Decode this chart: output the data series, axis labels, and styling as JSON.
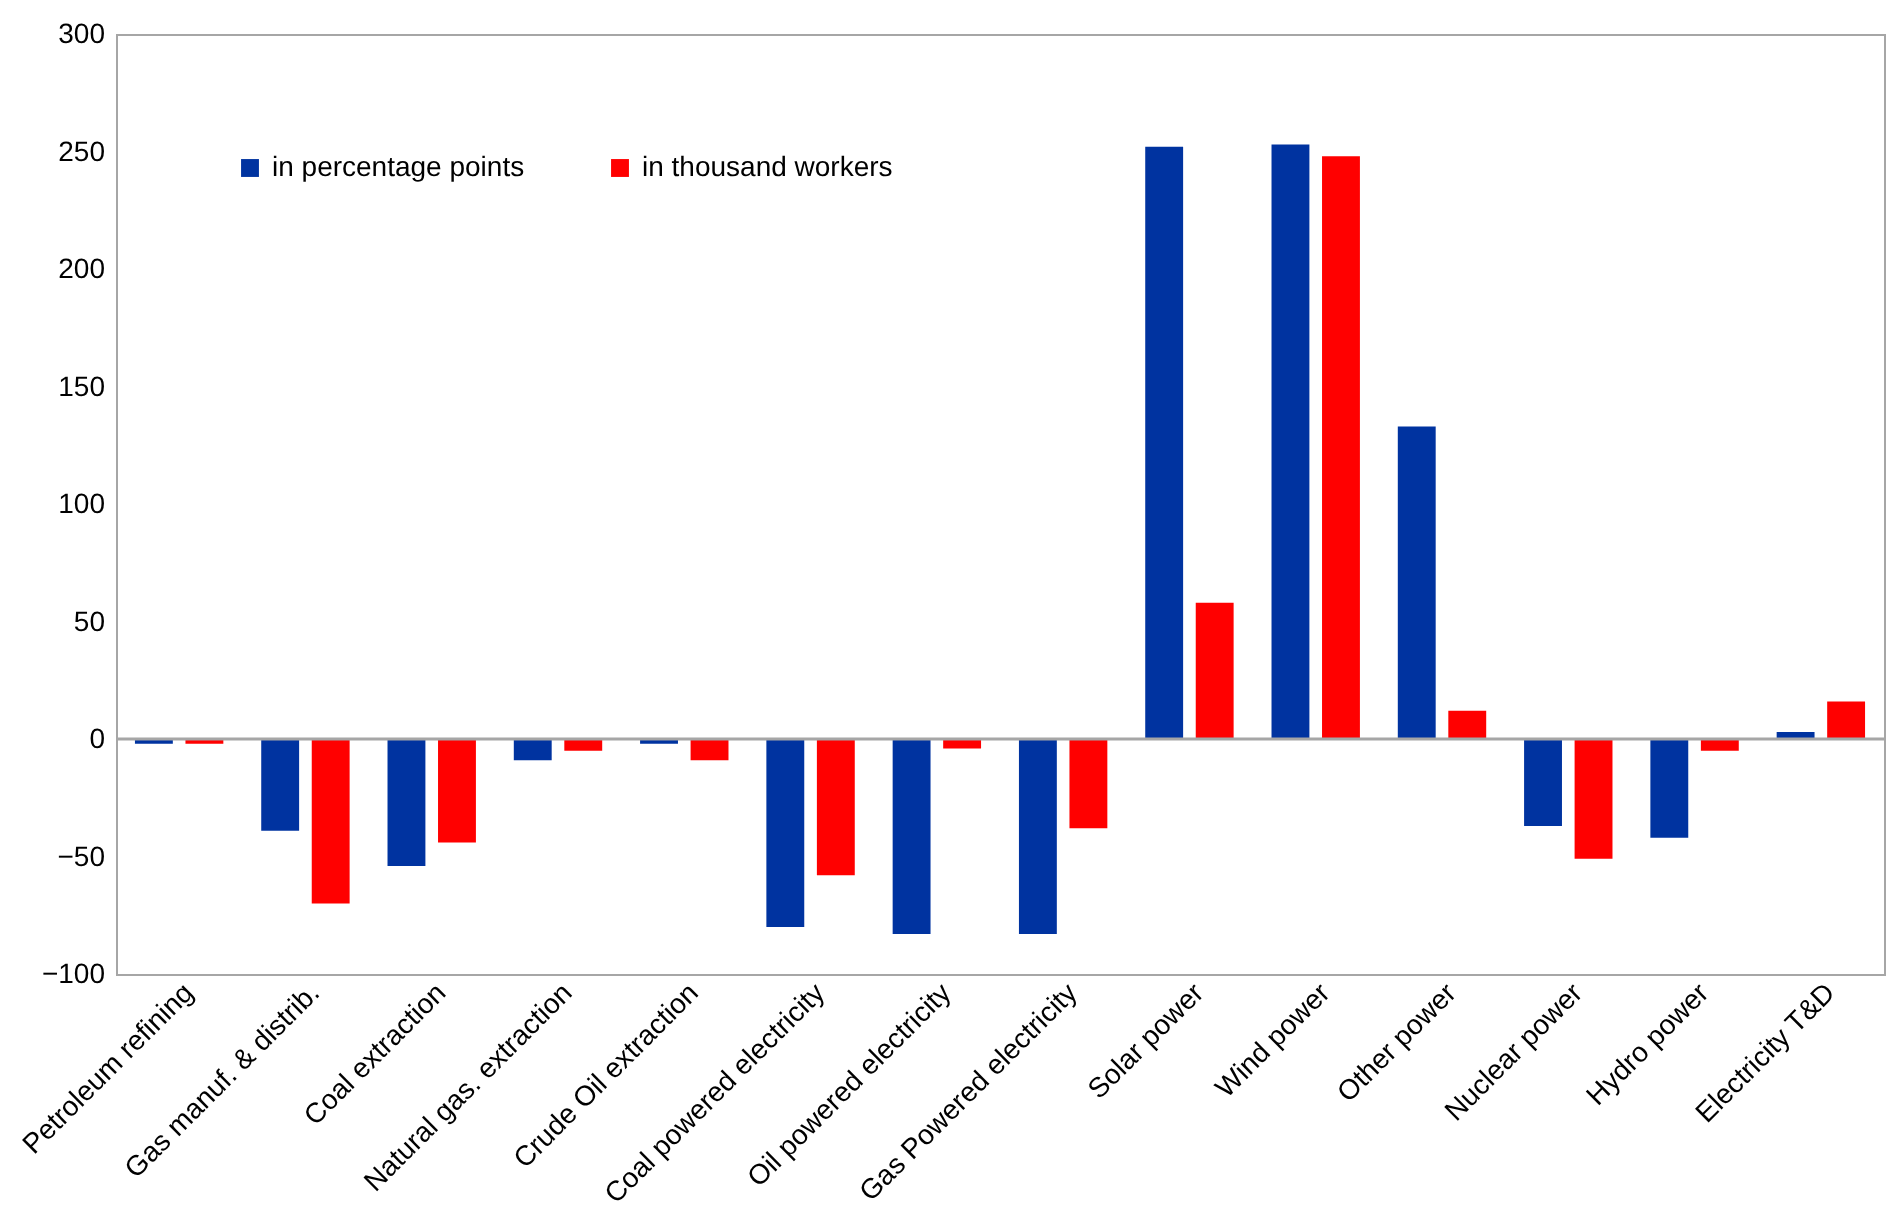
{
  "chart_data": {
    "type": "bar",
    "categories": [
      "Petroleum refining",
      "Gas manuf. & distrib.",
      "Coal extraction",
      "Natural gas. extraction",
      "Crude Oil extraction",
      "Coal powered electricity",
      "Oil powered electricity",
      "Gas Powered electricity",
      "Solar power",
      "Wind power",
      "Other power",
      "Nuclear power",
      "Hydro power",
      "Electricity T&D"
    ],
    "series": [
      {
        "name": "in percentage points",
        "color": "#0033a0",
        "values": [
          -2,
          -39,
          -54,
          -9,
          -2,
          -80,
          -83,
          -83,
          252,
          253,
          133,
          -37,
          -42,
          3
        ]
      },
      {
        "name": "in thousand workers",
        "color": "#ff0000",
        "values": [
          -2,
          -70,
          -44,
          -5,
          -9,
          -58,
          -4,
          -38,
          58,
          248,
          12,
          -51,
          -5,
          16
        ]
      }
    ],
    "ylim": [
      -100,
      300
    ],
    "yticks": [
      -100,
      -50,
      0,
      50,
      100,
      150,
      200,
      250,
      300
    ],
    "grid": false,
    "legend": "top left",
    "ref_lines": [
      {
        "axis": "y",
        "value": 0,
        "color": "#a6a6a6"
      }
    ]
  }
}
